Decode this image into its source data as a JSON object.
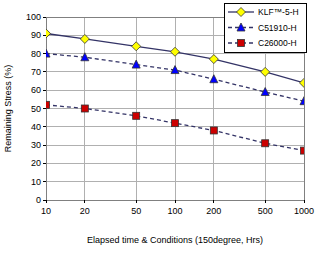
{
  "chart_data": {
    "type": "line",
    "x_label": "Elapsed time & Conditions (150degree, Hrs)",
    "y_label": "Remaining Stress (%)",
    "x": [
      10,
      20,
      50,
      100,
      200,
      500,
      1000
    ],
    "series": [
      {
        "name": "KLF™-5-H",
        "color": "#ffff00",
        "marker": "diamond",
        "line_style": "solid",
        "values": [
          91,
          88,
          84,
          81,
          77,
          70,
          64
        ]
      },
      {
        "name": "C51910-H",
        "color": "#0000ff",
        "marker": "triangle",
        "line_style": "dashed",
        "values": [
          80,
          78,
          74,
          71,
          66,
          59,
          54
        ]
      },
      {
        "name": "C26000-H",
        "color": "#cc0000",
        "marker": "square",
        "line_style": "dashed",
        "values": [
          52,
          50,
          46,
          42,
          38,
          31,
          27
        ]
      }
    ],
    "xlim": [
      10,
      1000
    ],
    "xticks": [
      10,
      20,
      50,
      100,
      200,
      500,
      1000
    ],
    "ylim": [
      0,
      100
    ],
    "yticks": [
      0,
      10,
      20,
      30,
      40,
      50,
      60,
      70,
      80,
      90,
      100
    ],
    "log": "x",
    "grid": true,
    "legend": "upper right"
  }
}
